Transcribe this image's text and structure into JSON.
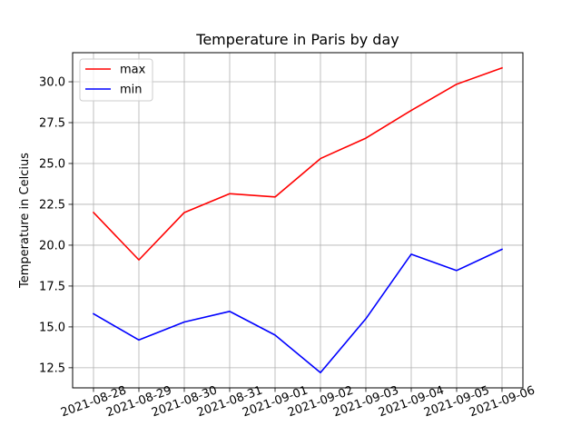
{
  "chart_data": {
    "type": "line",
    "title": "Temperature in Paris by day",
    "xlabel": "",
    "ylabel": "Temperature in Celcius",
    "x": [
      "2021-08-28",
      "2021-08-29",
      "2021-08-30",
      "2021-08-31",
      "2021-09-01",
      "2021-09-02",
      "2021-09-03",
      "2021-09-04",
      "2021-09-05",
      "2021-09-06"
    ],
    "series": [
      {
        "name": "max",
        "color": "#ff0000",
        "values": [
          22.0,
          19.1,
          22.0,
          23.15,
          22.95,
          25.3,
          26.55,
          28.25,
          29.85,
          30.85
        ]
      },
      {
        "name": "min",
        "color": "#0000ff",
        "values": [
          15.8,
          14.2,
          15.3,
          15.95,
          14.5,
          12.2,
          15.5,
          19.45,
          18.45,
          19.75
        ]
      }
    ],
    "yticks": [
      "12.5",
      "15.0",
      "17.5",
      "20.0",
      "22.5",
      "25.0",
      "27.5",
      "30.0"
    ],
    "ylim": [
      11.27,
      31.78
    ],
    "grid": true,
    "legend_position": "upper-left"
  }
}
